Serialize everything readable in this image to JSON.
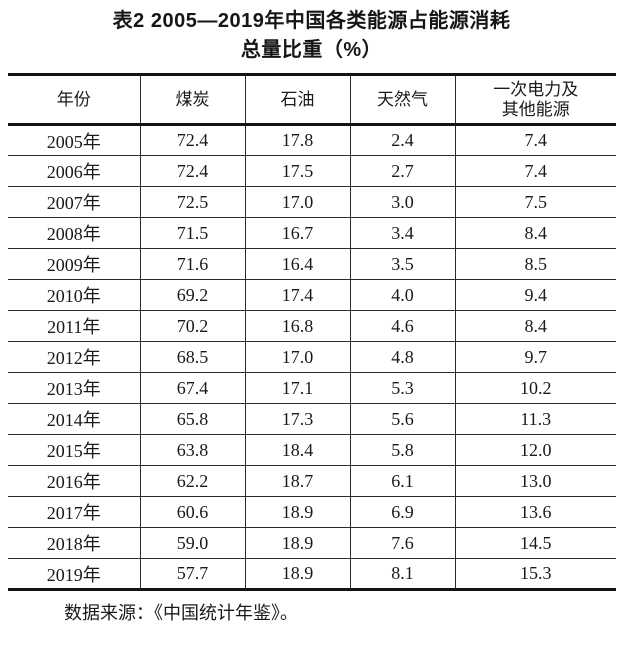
{
  "page": {
    "title_line1": "表2 2005—2019年中国各类能源占能源消耗",
    "title_line2": "总量比重（%）",
    "source_note": "数据来源：《中国统计年鉴》。"
  },
  "colors": {
    "text": "#1a1a1a",
    "border": "#141414",
    "background": "#ffffff"
  },
  "chart_data": {
    "type": "table",
    "title": "表2 2005—2019年中国各类能源占能源消耗总量比重（%）",
    "columns": [
      "年份",
      "煤炭",
      "石油",
      "天然气",
      "一次电力及\n其他能源"
    ],
    "rows": [
      [
        "2005年",
        "72.4",
        "17.8",
        "2.4",
        "7.4"
      ],
      [
        "2006年",
        "72.4",
        "17.5",
        "2.7",
        "7.4"
      ],
      [
        "2007年",
        "72.5",
        "17.0",
        "3.0",
        "7.5"
      ],
      [
        "2008年",
        "71.5",
        "16.7",
        "3.4",
        "8.4"
      ],
      [
        "2009年",
        "71.6",
        "16.4",
        "3.5",
        "8.5"
      ],
      [
        "2010年",
        "69.2",
        "17.4",
        "4.0",
        "9.4"
      ],
      [
        "2011年",
        "70.2",
        "16.8",
        "4.6",
        "8.4"
      ],
      [
        "2012年",
        "68.5",
        "17.0",
        "4.8",
        "9.7"
      ],
      [
        "2013年",
        "67.4",
        "17.1",
        "5.3",
        "10.2"
      ],
      [
        "2014年",
        "65.8",
        "17.3",
        "5.6",
        "11.3"
      ],
      [
        "2015年",
        "63.8",
        "18.4",
        "5.8",
        "12.0"
      ],
      [
        "2016年",
        "62.2",
        "18.7",
        "6.1",
        "13.0"
      ],
      [
        "2017年",
        "60.6",
        "18.9",
        "6.9",
        "13.6"
      ],
      [
        "2018年",
        "59.0",
        "18.9",
        "7.6",
        "14.5"
      ],
      [
        "2019年",
        "57.7",
        "18.9",
        "8.1",
        "15.3"
      ]
    ],
    "source": "数据来源：《中国统计年鉴》。"
  }
}
